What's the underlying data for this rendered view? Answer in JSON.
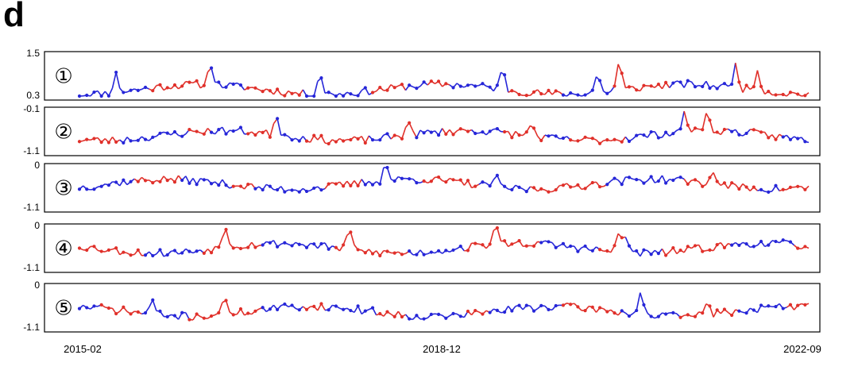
{
  "figure": {
    "panel_letter": "d"
  },
  "colors": {
    "red": "#e0302a",
    "blue": "#2626d8",
    "frame": "#000000"
  },
  "chart_data": {
    "type": "line",
    "x_tick_labels": [
      "2015-02",
      "2018-12",
      "2022-09"
    ],
    "grid": false,
    "legend": "none",
    "panels": [
      {
        "badge": "①",
        "ytick_labels": [
          "1.5",
          "0.3"
        ],
        "ylim": [
          0.3,
          1.5
        ],
        "base": 0.5,
        "amp": 0.9,
        "noise": 0.35,
        "seed": 11,
        "spikes": [
          [
            0.05,
            0.75
          ],
          [
            0.18,
            0.95
          ],
          [
            0.33,
            0.95
          ],
          [
            0.58,
            0.85
          ],
          [
            0.71,
            0.85
          ],
          [
            0.74,
            1.25
          ],
          [
            0.9,
            1.0
          ],
          [
            0.93,
            0.9
          ]
        ]
      },
      {
        "badge": "②",
        "ytick_labels": [
          "-0.1",
          "-1.1"
        ],
        "ylim": [
          -1.1,
          -0.1
        ],
        "base": -0.7,
        "amp": 0.7,
        "noise": 0.35,
        "seed": 23,
        "spikes": [
          [
            0.27,
            0.9
          ],
          [
            0.45,
            0.7
          ],
          [
            0.62,
            0.6
          ],
          [
            0.83,
            0.85
          ],
          [
            0.86,
            0.75
          ]
        ]
      },
      {
        "badge": "③",
        "ytick_labels": [
          "0",
          "-1.1"
        ],
        "ylim": [
          -1.1,
          0
        ],
        "base": -0.45,
        "amp": 0.7,
        "noise": 0.35,
        "seed": 37,
        "spikes": [
          [
            0.42,
            0.9
          ],
          [
            0.57,
            0.55
          ],
          [
            0.87,
            0.55
          ]
        ]
      },
      {
        "badge": "④",
        "ytick_labels": [
          "0",
          "-1.1"
        ],
        "ylim": [
          -1.1,
          0
        ],
        "base": -0.55,
        "amp": 0.7,
        "noise": 0.35,
        "seed": 53,
        "spikes": [
          [
            0.2,
            1.0
          ],
          [
            0.37,
            0.95
          ],
          [
            0.57,
            0.95
          ],
          [
            0.74,
            0.9
          ],
          [
            0.75,
            0.75
          ]
        ]
      },
      {
        "badge": "⑤",
        "ytick_labels": [
          "0",
          "-1.1"
        ],
        "ylim": [
          -1.1,
          0
        ],
        "base": -0.65,
        "amp": 0.7,
        "noise": 0.35,
        "seed": 71,
        "spikes": [
          [
            0.1,
            0.6
          ],
          [
            0.2,
            0.75
          ],
          [
            0.77,
            1.0
          ],
          [
            0.86,
            0.65
          ]
        ]
      }
    ]
  }
}
